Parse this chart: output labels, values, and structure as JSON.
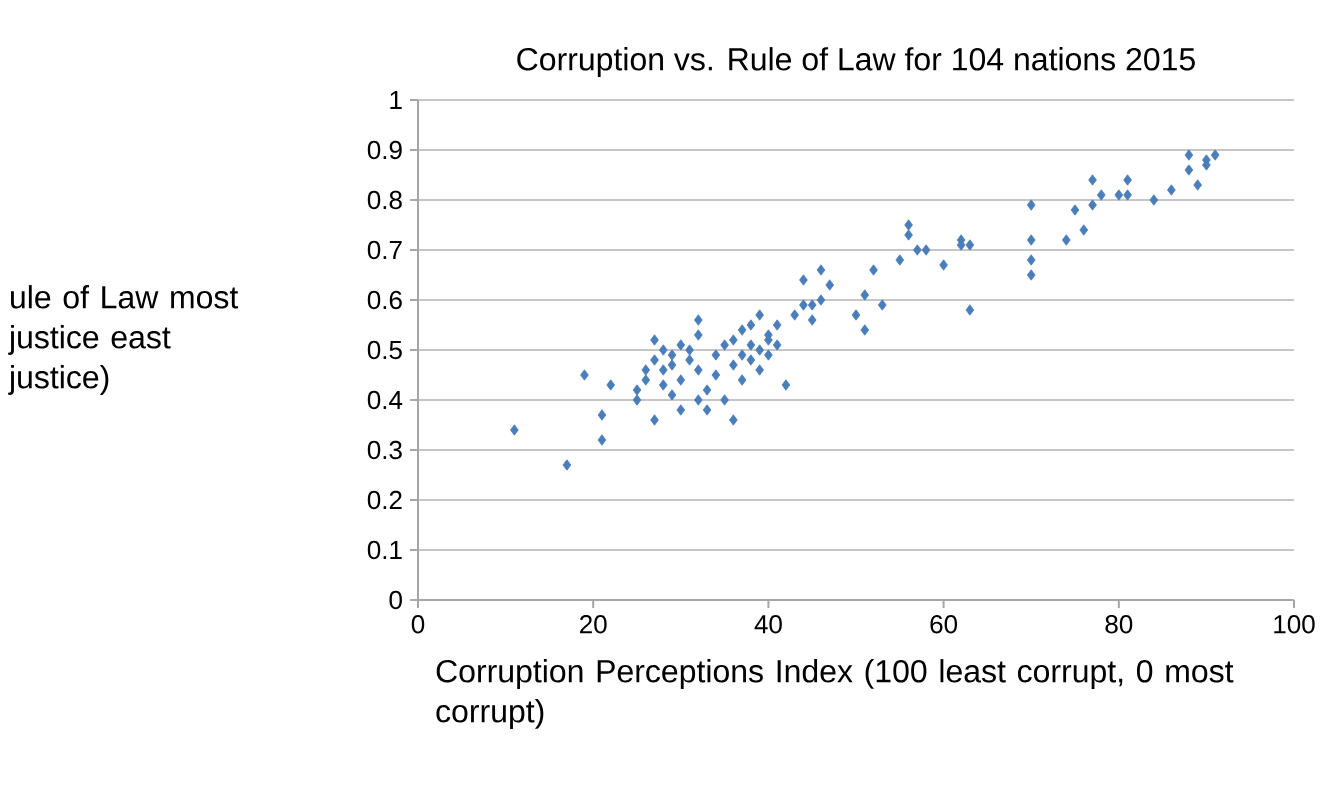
{
  "chart_data": {
    "type": "scatter",
    "title": "Corruption vs. Rule of Law for 104 nations 2015",
    "xlabel": "Corruption Perceptions Index (100 least corrupt, 0 most corrupt)",
    "ylabel": "ule of Law most justice east justice)",
    "xlim": [
      0,
      100
    ],
    "xticks": [
      0,
      20,
      40,
      60,
      80,
      100
    ],
    "ylim": [
      0,
      1
    ],
    "yticks": [
      0,
      0.1,
      0.2,
      0.3,
      0.4,
      0.5,
      0.6,
      0.7,
      0.8,
      0.9,
      1
    ],
    "grid": "y",
    "marker": "diamond",
    "color": "#4a7ebb",
    "x": [
      11,
      17,
      19,
      21,
      21,
      22,
      25,
      25,
      26,
      26,
      27,
      27,
      27,
      28,
      28,
      28,
      29,
      29,
      29,
      30,
      30,
      30,
      31,
      31,
      32,
      32,
      32,
      32,
      33,
      33,
      34,
      34,
      35,
      35,
      36,
      36,
      36,
      37,
      37,
      37,
      38,
      38,
      38,
      39,
      39,
      39,
      40,
      40,
      40,
      41,
      41,
      42,
      43,
      44,
      44,
      45,
      45,
      46,
      46,
      47,
      50,
      51,
      51,
      52,
      53,
      55,
      56,
      56,
      57,
      58,
      60,
      62,
      62,
      63,
      63,
      70,
      70,
      70,
      70,
      74,
      75,
      76,
      77,
      77,
      78,
      80,
      81,
      81,
      84,
      86,
      88,
      88,
      89,
      90,
      90,
      91
    ],
    "values": [
      0.34,
      0.27,
      0.45,
      0.37,
      0.32,
      0.43,
      0.4,
      0.42,
      0.44,
      0.46,
      0.48,
      0.52,
      0.36,
      0.43,
      0.46,
      0.5,
      0.47,
      0.41,
      0.49,
      0.38,
      0.44,
      0.51,
      0.48,
      0.5,
      0.4,
      0.46,
      0.53,
      0.56,
      0.42,
      0.38,
      0.49,
      0.45,
      0.4,
      0.51,
      0.36,
      0.52,
      0.47,
      0.54,
      0.49,
      0.44,
      0.55,
      0.51,
      0.48,
      0.5,
      0.57,
      0.46,
      0.53,
      0.52,
      0.49,
      0.55,
      0.51,
      0.43,
      0.57,
      0.64,
      0.59,
      0.59,
      0.56,
      0.6,
      0.66,
      0.63,
      0.57,
      0.54,
      0.61,
      0.66,
      0.59,
      0.68,
      0.75,
      0.73,
      0.7,
      0.7,
      0.67,
      0.71,
      0.72,
      0.71,
      0.58,
      0.79,
      0.72,
      0.68,
      0.65,
      0.72,
      0.78,
      0.74,
      0.84,
      0.79,
      0.81,
      0.81,
      0.84,
      0.81,
      0.8,
      0.82,
      0.89,
      0.86,
      0.83,
      0.87,
      0.88,
      0.89
    ]
  }
}
